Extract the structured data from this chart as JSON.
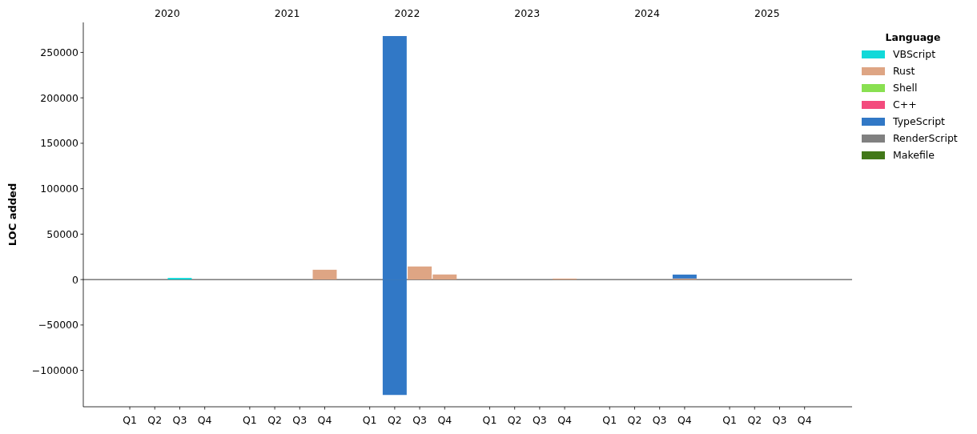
{
  "chart_data": {
    "type": "bar",
    "stacked": true,
    "ylabel": "LOC added",
    "legend_title": "Language",
    "legend": "top right",
    "grid": false,
    "categories": [
      "Q1",
      "Q2",
      "Q3",
      "Q4",
      "Q1",
      "Q2",
      "Q3",
      "Q4",
      "Q1",
      "Q2",
      "Q3",
      "Q4",
      "Q1",
      "Q2",
      "Q3",
      "Q4",
      "Q1",
      "Q2",
      "Q3",
      "Q4",
      "Q1",
      "Q2",
      "Q3",
      "Q4"
    ],
    "annotations": [
      "2020",
      "2021",
      "2022",
      "2023",
      "2024",
      "2025"
    ],
    "ylim": [
      -140000,
      283000
    ],
    "yticks": [
      {
        "value": -100000,
        "label": "−100000"
      },
      {
        "value": -50000,
        "label": "−50000"
      },
      0,
      50000,
      100000,
      150000,
      200000,
      250000
    ],
    "ref_lines": [
      {
        "axis": "y",
        "value": 0,
        "color": "#000000"
      }
    ],
    "series": [
      {
        "name": "VBScript",
        "color": "#11d9d9",
        "values": [
          0,
          0,
          1800,
          0,
          0,
          0,
          0,
          0,
          0,
          0,
          0,
          0,
          0,
          0,
          0,
          0,
          0,
          0,
          0,
          0,
          0,
          0,
          0,
          0
        ]
      },
      {
        "name": "Rust",
        "color": "#dea584",
        "values": [
          0,
          0,
          0,
          0,
          0,
          0,
          0,
          10800,
          0,
          0,
          14400,
          5600,
          0,
          0,
          0,
          1100,
          0,
          0,
          0,
          1100,
          0,
          0,
          0,
          0
        ]
      },
      {
        "name": "Shell",
        "color": "#89e051",
        "values": [
          0,
          0,
          0,
          0,
          0,
          0,
          0,
          0,
          0,
          0,
          0,
          0,
          0,
          0,
          0,
          0,
          0,
          0,
          0,
          0,
          0,
          0,
          0,
          0
        ]
      },
      {
        "name": "C++",
        "color": "#f34b7d",
        "values": [
          0,
          0,
          0,
          0,
          0,
          0,
          0,
          0,
          0,
          0,
          0,
          0,
          0,
          0,
          0,
          0,
          0,
          0,
          0,
          0,
          0,
          0,
          0,
          0
        ]
      },
      {
        "name": "TypeScript",
        "color": "#3178c6",
        "values": [
          0,
          0,
          0,
          0,
          0,
          0,
          0,
          0,
          0,
          268000,
          0,
          0,
          0,
          0,
          0,
          0,
          0,
          0,
          0,
          4400,
          0,
          0,
          0,
          0
        ]
      },
      {
        "name": "RenderScript",
        "color": "#808080",
        "values": [
          0,
          0,
          0,
          0,
          0,
          0,
          0,
          0,
          0,
          0,
          0,
          0,
          0,
          0,
          0,
          0,
          0,
          0,
          0,
          0,
          0,
          0,
          0,
          0
        ]
      },
      {
        "name": "Makefile",
        "color": "#427819",
        "values": [
          0,
          0,
          0,
          0,
          0,
          0,
          0,
          0,
          0,
          0,
          0,
          0,
          0,
          0,
          0,
          0,
          0,
          0,
          0,
          0,
          0,
          0,
          0,
          0
        ]
      },
      {
        "color": "#3178c6",
        "values": [
          0,
          0,
          0,
          0,
          0,
          0,
          0,
          0,
          0,
          -127000,
          0,
          0,
          0,
          0,
          0,
          0,
          0,
          0,
          0,
          0,
          0,
          0,
          0,
          0
        ]
      }
    ]
  }
}
